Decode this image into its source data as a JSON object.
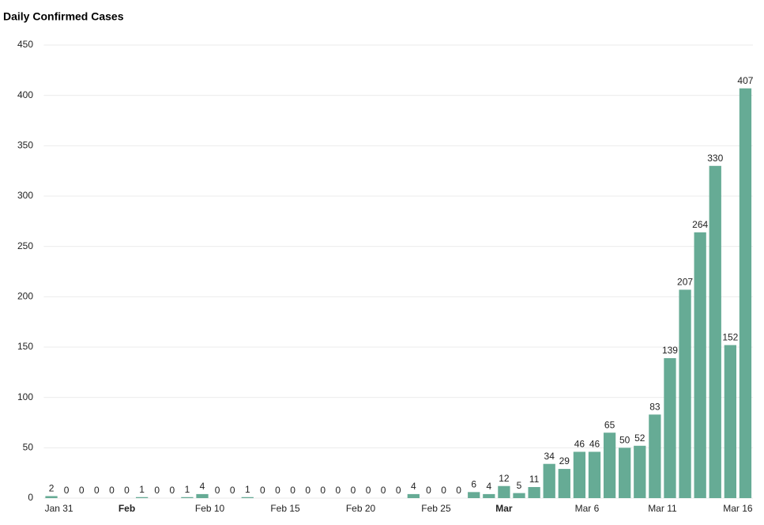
{
  "chart_data": {
    "type": "bar",
    "title": "Daily Confirmed Cases",
    "categories": [
      "Jan 31",
      null,
      null,
      null,
      null,
      "Feb",
      null,
      null,
      null,
      null,
      "Feb 10",
      null,
      null,
      null,
      null,
      "Feb 15",
      null,
      null,
      null,
      null,
      "Feb 20",
      null,
      null,
      null,
      null,
      "Feb 25",
      null,
      null,
      null,
      null,
      "Mar",
      null,
      null,
      null,
      null,
      "Mar 6",
      null,
      null,
      null,
      null,
      "Mar 11",
      null,
      null,
      null,
      null,
      "Mar 16",
      null
    ],
    "values": [
      2,
      0,
      0,
      0,
      0,
      0,
      1,
      0,
      0,
      1,
      4,
      0,
      0,
      1,
      0,
      0,
      0,
      0,
      0,
      0,
      0,
      0,
      0,
      0,
      4,
      0,
      0,
      0,
      6,
      4,
      12,
      5,
      11,
      34,
      29,
      46,
      46,
      65,
      50,
      52,
      83,
      139,
      207,
      264,
      330,
      152,
      407
    ],
    "color": "#66ab95",
    "ylim": [
      0,
      450
    ],
    "yticks": [
      0,
      50,
      100,
      150,
      200,
      250,
      300,
      350,
      400,
      450
    ],
    "grid": true
  }
}
